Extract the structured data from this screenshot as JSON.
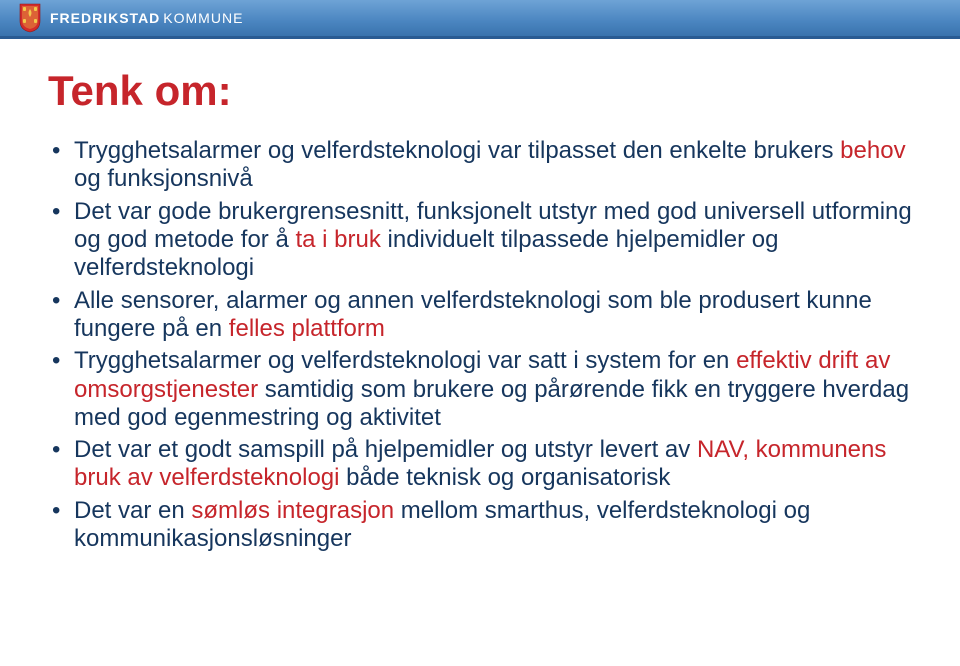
{
  "header": {
    "brand_part1": "FREDRIKSTAD",
    "brand_part2": "KOMMUNE"
  },
  "slide": {
    "title": "Tenk om:",
    "title_color": "#c6252b",
    "text_color": "#16365d",
    "bullets": [
      {
        "segments": [
          {
            "text": "Trygghetsalarmer og velferdsteknologi var tilpasset den enkelte brukers ",
            "color": "#16365d"
          },
          {
            "text": "behov",
            "color": "#c6252b"
          },
          {
            "text": " og funksjonsnivå",
            "color": "#16365d"
          }
        ]
      },
      {
        "segments": [
          {
            "text": "Det var gode brukergrensesnitt, funksjonelt utstyr med god universell utforming og god metode for å ",
            "color": "#16365d"
          },
          {
            "text": "ta i bruk",
            "color": "#c6252b"
          },
          {
            "text": " individuelt tilpassede hjelpemidler og velferdsteknologi",
            "color": "#16365d"
          }
        ]
      },
      {
        "segments": [
          {
            "text": "Alle sensorer, alarmer og annen velferdsteknologi som ble produsert kunne fungere på en ",
            "color": "#16365d"
          },
          {
            "text": "felles plattform",
            "color": "#c6252b"
          }
        ]
      },
      {
        "segments": [
          {
            "text": "Trygghetsalarmer og velferdsteknologi var satt i system for en ",
            "color": "#16365d"
          },
          {
            "text": "effektiv drift av omsorgstjenester",
            "color": "#c6252b"
          },
          {
            "text": " samtidig som brukere og pårørende fikk en tryggere hverdag med god egenmestring og aktivitet",
            "color": "#16365d"
          }
        ]
      },
      {
        "segments": [
          {
            "text": "Det var et godt samspill på hjelpemidler og utstyr levert av ",
            "color": "#16365d"
          },
          {
            "text": "NAV, kommunens bruk av velferdsteknologi",
            "color": "#c6252b"
          },
          {
            "text": " både teknisk og organisatorisk",
            "color": "#16365d"
          }
        ]
      },
      {
        "segments": [
          {
            "text": "Det var en ",
            "color": "#16365d"
          },
          {
            "text": "sømløs integrasjon",
            "color": "#c6252b"
          },
          {
            "text": " mellom smarthus, velferdsteknologi og kommunikasjonsløsninger",
            "color": "#16365d"
          }
        ]
      }
    ]
  },
  "colors": {
    "header_gradient_top": "#6ea3d6",
    "header_gradient_bottom": "#3a73ad",
    "header_underline": "#2a5b92",
    "background": "#ffffff",
    "crest_red": "#d22b2b",
    "crest_yellow": "#f2c84b"
  }
}
